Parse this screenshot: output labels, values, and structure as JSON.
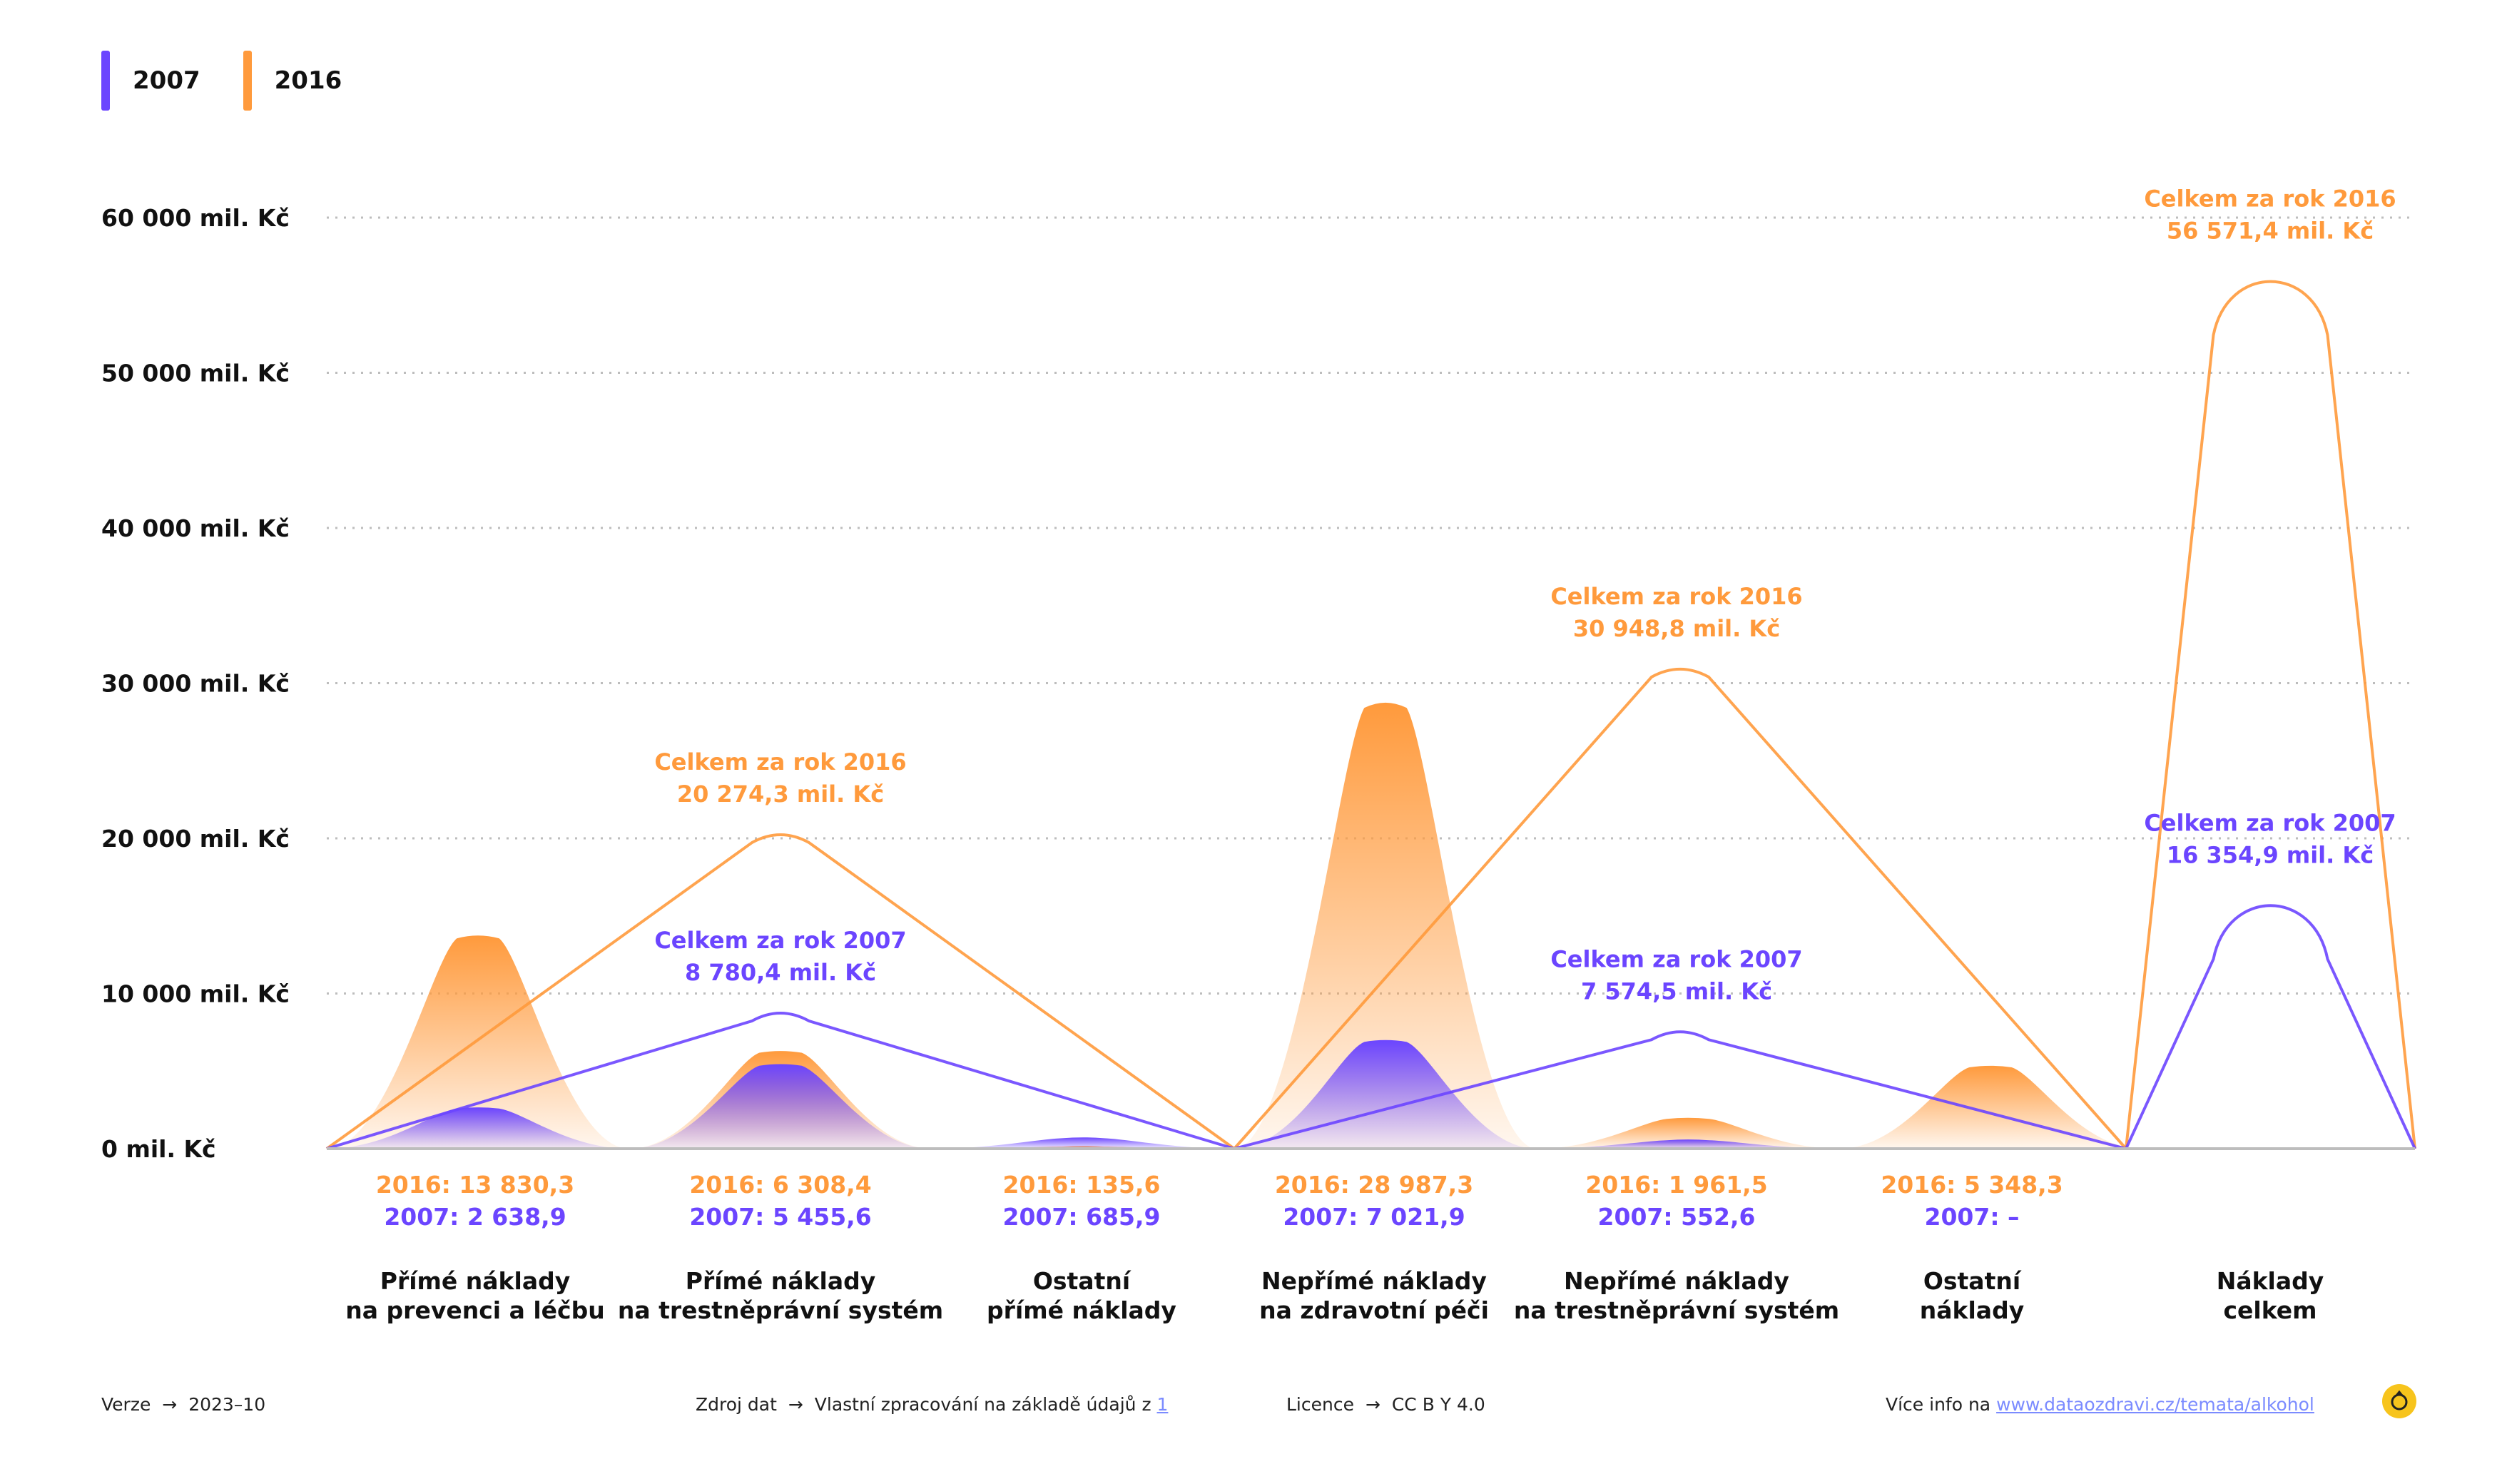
{
  "colors": {
    "y2007": "#6b45ff",
    "y2016": "#ff9a3c",
    "grid": "#bdbdbd",
    "text": "#111111"
  },
  "legend": [
    {
      "label": "2007",
      "color": "#6b45ff"
    },
    {
      "label": "2016",
      "color": "#ff9a3c"
    }
  ],
  "chart_data": {
    "type": "area",
    "title": "",
    "ylim": [
      0,
      60000
    ],
    "y_ticks": [
      {
        "value": 0,
        "label": "0 mil. Kč"
      },
      {
        "value": 10000,
        "label": "10 000 mil. Kč"
      },
      {
        "value": 20000,
        "label": "20 000 mil. Kč"
      },
      {
        "value": 30000,
        "label": "30 000 mil. Kč"
      },
      {
        "value": 40000,
        "label": "40 000 mil. Kč"
      },
      {
        "value": 50000,
        "label": "50 000 mil. Kč"
      },
      {
        "value": 60000,
        "label": "60 000 mil. Kč"
      }
    ],
    "grid": true,
    "legend_position": "top-left",
    "categories": [
      {
        "name_line1": "Přímé náklady",
        "name_line2": "na prevenci a léčbu",
        "v2016": 13830.3,
        "v2007": 2638.9,
        "label2016": "2016: 13 830,3",
        "label2007": "2007: 2 638,9"
      },
      {
        "name_line1": "Přímé náklady",
        "name_line2": "na trestněprávní systém",
        "v2016": 6308.4,
        "v2007": 5455.6,
        "label2016": "2016: 6 308,4",
        "label2007": "2007: 5 455,6"
      },
      {
        "name_line1": "Ostatní",
        "name_line2": "přímé náklady",
        "v2016": 135.6,
        "v2007": 685.9,
        "label2016": "2016: 135,6",
        "label2007": "2007: 685,9"
      },
      {
        "name_line1": "Nepřímé náklady",
        "name_line2": "na zdravotní péči",
        "v2016": 28987.3,
        "v2007": 7021.9,
        "label2016": "2016: 28 987,3",
        "label2007": "2007: 7 021,9"
      },
      {
        "name_line1": "Nepřímé náklady",
        "name_line2": "na trestněprávní systém",
        "v2016": 1961.5,
        "v2007": 552.6,
        "label2016": "2016: 1 961,5",
        "label2007": "2007: 552,6"
      },
      {
        "name_line1": "Ostatní",
        "name_line2": "náklady",
        "v2016": 5348.3,
        "v2007": 0,
        "label2016": "2016: 5 348,3",
        "label2007": "2007: –"
      },
      {
        "name_line1": "Náklady",
        "name_line2": "celkem",
        "v2016": null,
        "v2007": null,
        "label2016": "",
        "label2007": ""
      }
    ],
    "totals": [
      {
        "group": "Přímé náklady",
        "series": "2016",
        "value": 20274.3,
        "label_line1": "Celkem za rok 2016",
        "label_line2": "20 274,3 mil. Kč"
      },
      {
        "group": "Přímé náklady",
        "series": "2007",
        "value": 8780.4,
        "label_line1": "Celkem za rok 2007",
        "label_line2": "8 780,4 mil. Kč"
      },
      {
        "group": "Nepřímé náklady",
        "series": "2016",
        "value": 30948.8,
        "label_line1": "Celkem za rok 2016",
        "label_line2": "30 948,8 mil. Kč"
      },
      {
        "group": "Nepřímé náklady",
        "series": "2007",
        "value": 7574.5,
        "label_line1": "Celkem za rok 2007",
        "label_line2": "7 574,5 mil. Kč"
      },
      {
        "group": "Náklady celkem",
        "series": "2016",
        "value": 56571.4,
        "label_line1": "Celkem za rok 2016",
        "label_line2": "56 571,4 mil. Kč"
      },
      {
        "group": "Náklady celkem",
        "series": "2007",
        "value": 16354.9,
        "label_line1": "Celkem za rok 2007",
        "label_line2": "16 354,9 mil. Kč"
      }
    ]
  },
  "footer": {
    "version_label": "Verze",
    "version_value": "2023–10",
    "source_label": "Zdroj dat",
    "source_value": "Vlastní zpracování na základě údajů z",
    "source_link": "1",
    "license_label": "Licence",
    "license_value": "CC B Y 4.0",
    "info_label": "Více info na",
    "info_link": "www.dataozdravi.cz/temata/alkohol",
    "arrow": "→"
  }
}
